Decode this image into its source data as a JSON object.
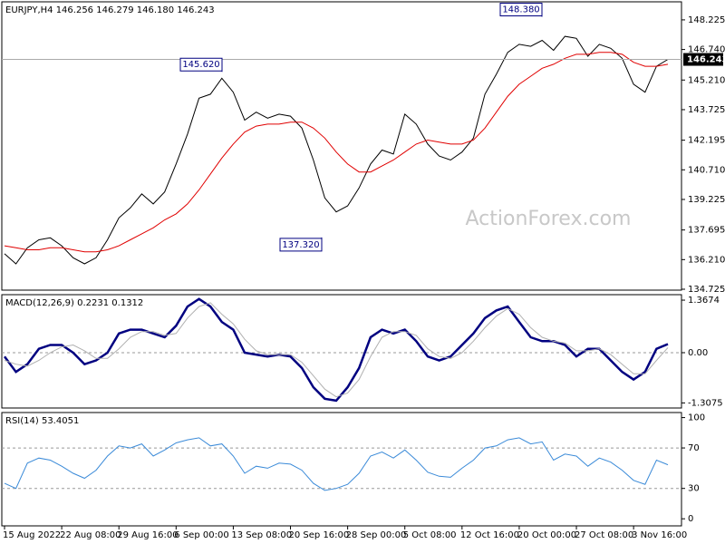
{
  "chart_data": [
    {
      "type": "line",
      "title": "EURJPY,H4 146.256 146.279 146.180 146.243",
      "watermark": "ActionForex.com",
      "ylim": [
        134.68,
        149.13
      ],
      "yticks": [
        148.225,
        {
          "value": 146.74,
          "label": "146.740"
        },
        {
          "value": 145.21,
          "label": "145.210"
        },
        143.725,
        142.195,
        {
          "value": 140.71,
          "label": "140.710"
        },
        139.225,
        137.695,
        {
          "value": 136.21,
          "label": "136.210"
        },
        134.725
      ],
      "series": [
        {
          "color": "#000000",
          "values": [
            136.5,
            136.0,
            136.8,
            137.2,
            137.3,
            136.9,
            136.3,
            136.0,
            136.3,
            137.2,
            138.3,
            138.8,
            139.5,
            139.0,
            139.6,
            141.0,
            142.5,
            144.3,
            144.5,
            145.3,
            144.6,
            143.2,
            143.6,
            143.3,
            143.5,
            143.4,
            142.8,
            141.2,
            139.3,
            138.6,
            138.9,
            139.8,
            141.0,
            141.7,
            141.5,
            143.5,
            143.0,
            142.0,
            141.4,
            141.2,
            141.6,
            142.3,
            144.5,
            145.5,
            146.6,
            147.0,
            146.9,
            147.2,
            146.7,
            147.4,
            147.3,
            146.4,
            147.0,
            146.8,
            146.3,
            145.0,
            144.6,
            145.9,
            146.243
          ]
        },
        {
          "color": "#e00000",
          "values": [
            136.9,
            136.8,
            136.7,
            136.7,
            136.8,
            136.8,
            136.7,
            136.6,
            136.6,
            136.7,
            136.9,
            137.2,
            137.5,
            137.8,
            138.2,
            138.5,
            139.0,
            139.7,
            140.5,
            141.3,
            142.0,
            142.6,
            142.9,
            143.0,
            143.0,
            143.1,
            143.1,
            142.8,
            142.3,
            141.6,
            141.0,
            140.6,
            140.6,
            140.9,
            141.2,
            141.6,
            142.0,
            142.2,
            142.1,
            142.0,
            142.0,
            142.2,
            142.8,
            143.6,
            144.4,
            145.0,
            145.4,
            145.8,
            146.0,
            146.3,
            146.5,
            146.5,
            146.6,
            146.6,
            146.5,
            146.1,
            145.9,
            145.9,
            146.0
          ]
        }
      ],
      "annotations": [
        {
          "value": 145.62,
          "label": "145.620"
        },
        {
          "value": 137.32,
          "label": "137.320"
        },
        {
          "value": 148.38,
          "label": "148.380"
        }
      ]
    },
    {
      "type": "line",
      "title": "MACD(12,26,9) 0.2231 0.1312",
      "ylim": [
        -1.44,
        1.51
      ],
      "yticks": [
        1.3674,
        {
          "value": 0,
          "label": "0.00"
        },
        -1.3075
      ],
      "levels": [
        0
      ],
      "series": [
        {
          "color": "#000080",
          "values": [
            -0.1,
            -0.5,
            -0.3,
            0.1,
            0.2,
            0.2,
            0.0,
            -0.3,
            -0.2,
            0.0,
            0.5,
            0.6,
            0.6,
            0.5,
            0.4,
            0.7,
            1.2,
            1.4,
            1.2,
            0.8,
            0.6,
            0.0,
            -0.05,
            -0.1,
            -0.05,
            -0.1,
            -0.4,
            -0.9,
            -1.2,
            -1.25,
            -0.9,
            -0.4,
            0.4,
            0.6,
            0.5,
            0.6,
            0.3,
            -0.1,
            -0.2,
            -0.1,
            0.2,
            0.5,
            0.9,
            1.1,
            1.2,
            0.8,
            0.4,
            0.3,
            0.3,
            0.2,
            -0.1,
            0.1,
            0.1,
            -0.2,
            -0.5,
            -0.7,
            -0.5,
            0.1,
            0.2231
          ]
        },
        {
          "color": "#b0b0b0",
          "values": [
            -0.2,
            -0.3,
            -0.35,
            -0.2,
            0.0,
            0.15,
            0.2,
            0.05,
            -0.15,
            -0.15,
            0.1,
            0.4,
            0.55,
            0.55,
            0.45,
            0.5,
            0.9,
            1.2,
            1.3,
            1.0,
            0.75,
            0.35,
            0.05,
            -0.05,
            -0.05,
            -0.05,
            -0.25,
            -0.6,
            -0.95,
            -1.15,
            -1.05,
            -0.7,
            -0.1,
            0.4,
            0.55,
            0.55,
            0.45,
            0.1,
            -0.1,
            -0.15,
            0.0,
            0.3,
            0.65,
            0.95,
            1.15,
            1.0,
            0.65,
            0.4,
            0.3,
            0.25,
            0.05,
            0.05,
            0.1,
            -0.05,
            -0.3,
            -0.55,
            -0.55,
            -0.2,
            0.1312
          ]
        }
      ]
    },
    {
      "type": "line",
      "title": "RSI(14) 53.4051",
      "ylim": [
        -7,
        105
      ],
      "yticks": [
        100,
        70,
        30,
        0
      ],
      "levels": [
        70,
        30
      ],
      "categories": [
        "15 Aug 2022",
        null,
        null,
        null,
        null,
        "22 Aug 08:00",
        null,
        null,
        null,
        null,
        "29 Aug 16:00",
        null,
        null,
        null,
        null,
        "6 Sep 00:00",
        null,
        null,
        null,
        null,
        "13 Sep 08:00",
        null,
        null,
        null,
        null,
        "20 Sep 16:00",
        null,
        null,
        null,
        null,
        "28 Sep 00:00",
        null,
        null,
        null,
        null,
        "5 Oct 08:00",
        null,
        null,
        null,
        null,
        "12 Oct 16:00",
        null,
        null,
        null,
        null,
        "20 Oct 00:00",
        null,
        null,
        null,
        null,
        "27 Oct 08:00",
        null,
        null,
        null,
        null,
        "3 Nov 16:00",
        null,
        null,
        null
      ],
      "series": [
        {
          "color": "#3a8ad8",
          "values": [
            35,
            30,
            55,
            60,
            58,
            52,
            45,
            40,
            48,
            62,
            72,
            70,
            74,
            62,
            68,
            75,
            78,
            80,
            72,
            74,
            62,
            45,
            52,
            50,
            55,
            54,
            48,
            35,
            28,
            30,
            34,
            45,
            62,
            66,
            60,
            68,
            58,
            46,
            42,
            41,
            50,
            58,
            70,
            72,
            78,
            80,
            74,
            76,
            58,
            64,
            62,
            52,
            60,
            56,
            48,
            38,
            34,
            58,
            53.4051
          ]
        }
      ]
    }
  ]
}
